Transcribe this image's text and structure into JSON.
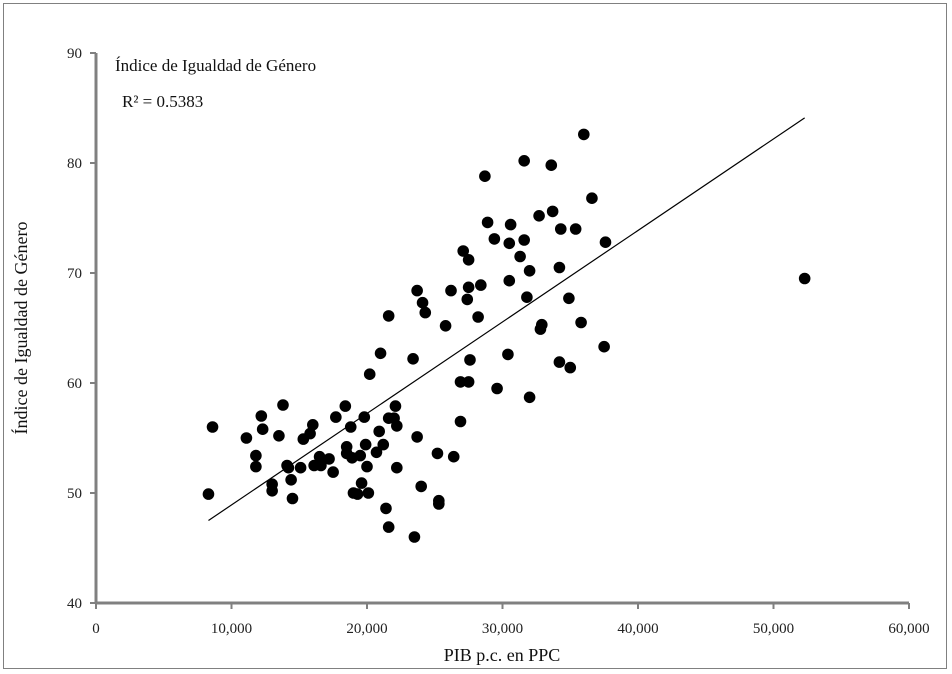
{
  "chart_data": {
    "type": "scatter",
    "title": "",
    "annotations": [
      "Índice de Igualdad de Género",
      "R² = 0.5383"
    ],
    "xlabel": "PIB p.c. en PPC",
    "ylabel": "Índice de Igualdad de Género",
    "xlim": [
      0,
      60000
    ],
    "ylim": [
      40,
      90
    ],
    "xticks": [
      0,
      10000,
      20000,
      30000,
      40000,
      50000,
      60000
    ],
    "xtick_labels": [
      "0",
      "10,000",
      "20,000",
      "30,000",
      "40,000",
      "50,000",
      "60,000"
    ],
    "yticks": [
      40,
      50,
      60,
      70,
      80,
      90
    ],
    "ytick_labels": [
      "40",
      "50",
      "60",
      "70",
      "80",
      "90"
    ],
    "grid": false,
    "trendline": {
      "x": [
        8300,
        52300
      ],
      "y": [
        47.5,
        84.1
      ],
      "r2": 0.5383
    },
    "series": [
      {
        "marker_color": "#000000",
        "points": [
          [
            8300,
            49.9
          ],
          [
            8600,
            56.0
          ],
          [
            11100,
            55.0
          ],
          [
            11800,
            52.4
          ],
          [
            11800,
            53.4
          ],
          [
            12200,
            57.0
          ],
          [
            12300,
            55.8
          ],
          [
            13000,
            50.2
          ],
          [
            13000,
            50.8
          ],
          [
            13500,
            55.2
          ],
          [
            13800,
            58.0
          ],
          [
            14100,
            52.5
          ],
          [
            14200,
            52.3
          ],
          [
            14400,
            51.2
          ],
          [
            14500,
            49.5
          ],
          [
            15100,
            52.3
          ],
          [
            15300,
            54.9
          ],
          [
            15800,
            55.4
          ],
          [
            16000,
            56.2
          ],
          [
            16100,
            52.5
          ],
          [
            16500,
            53.3
          ],
          [
            16600,
            52.5
          ],
          [
            17200,
            53.1
          ],
          [
            17500,
            51.9
          ],
          [
            17700,
            56.9
          ],
          [
            18400,
            57.9
          ],
          [
            18500,
            53.6
          ],
          [
            18500,
            54.2
          ],
          [
            18800,
            56.0
          ],
          [
            18900,
            53.2
          ],
          [
            19000,
            50.0
          ],
          [
            19300,
            49.9
          ],
          [
            19500,
            53.4
          ],
          [
            19600,
            50.9
          ],
          [
            19800,
            56.9
          ],
          [
            19900,
            54.4
          ],
          [
            20000,
            52.4
          ],
          [
            20100,
            50.0
          ],
          [
            20200,
            60.8
          ],
          [
            20700,
            53.7
          ],
          [
            20900,
            55.6
          ],
          [
            21000,
            62.7
          ],
          [
            21200,
            54.4
          ],
          [
            21400,
            48.6
          ],
          [
            21600,
            46.9
          ],
          [
            21600,
            56.8
          ],
          [
            21600,
            66.1
          ],
          [
            22000,
            56.8
          ],
          [
            22100,
            57.9
          ],
          [
            22200,
            56.1
          ],
          [
            22200,
            52.3
          ],
          [
            23400,
            62.2
          ],
          [
            23500,
            46.0
          ],
          [
            23700,
            55.1
          ],
          [
            23700,
            68.4
          ],
          [
            24000,
            50.6
          ],
          [
            24100,
            67.3
          ],
          [
            24300,
            66.4
          ],
          [
            25200,
            53.6
          ],
          [
            25300,
            49.0
          ],
          [
            25300,
            49.3
          ],
          [
            25800,
            65.2
          ],
          [
            26200,
            68.4
          ],
          [
            26400,
            53.3
          ],
          [
            26900,
            60.1
          ],
          [
            26900,
            56.5
          ],
          [
            27100,
            72.0
          ],
          [
            27400,
            67.6
          ],
          [
            27500,
            60.1
          ],
          [
            27500,
            68.7
          ],
          [
            27500,
            71.2
          ],
          [
            27600,
            62.1
          ],
          [
            28200,
            66.0
          ],
          [
            28400,
            68.9
          ],
          [
            28700,
            78.8
          ],
          [
            28900,
            74.6
          ],
          [
            29400,
            73.1
          ],
          [
            29600,
            59.5
          ],
          [
            30400,
            62.6
          ],
          [
            30500,
            72.7
          ],
          [
            30500,
            69.3
          ],
          [
            30600,
            74.4
          ],
          [
            31300,
            71.5
          ],
          [
            31600,
            73.0
          ],
          [
            31600,
            80.2
          ],
          [
            31800,
            67.8
          ],
          [
            32000,
            58.7
          ],
          [
            32000,
            70.2
          ],
          [
            32700,
            75.2
          ],
          [
            32800,
            64.9
          ],
          [
            32900,
            65.3
          ],
          [
            33600,
            79.8
          ],
          [
            33700,
            75.6
          ],
          [
            34200,
            61.9
          ],
          [
            34200,
            70.5
          ],
          [
            34300,
            74.0
          ],
          [
            34900,
            67.7
          ],
          [
            35000,
            61.4
          ],
          [
            35400,
            74.0
          ],
          [
            35800,
            65.5
          ],
          [
            36000,
            82.6
          ],
          [
            36600,
            76.8
          ],
          [
            37500,
            63.3
          ],
          [
            37600,
            72.8
          ],
          [
            52300,
            69.5
          ]
        ]
      }
    ]
  }
}
